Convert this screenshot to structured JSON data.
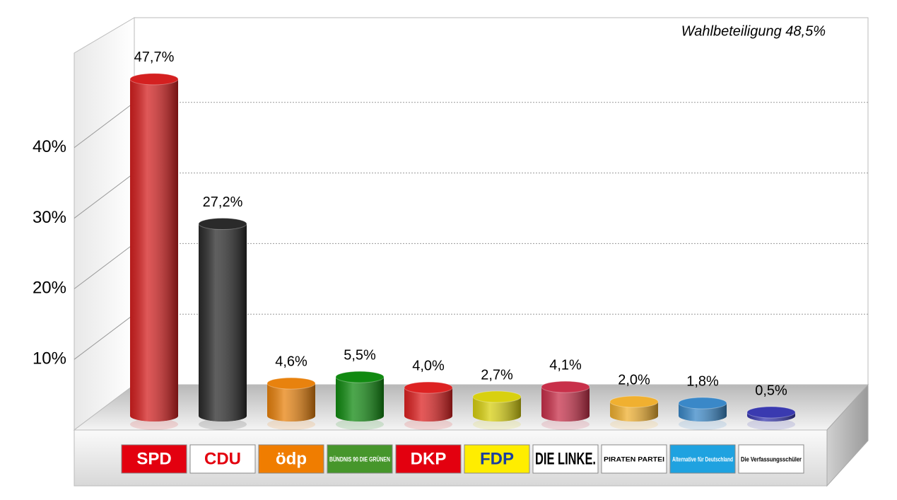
{
  "chart_data": {
    "type": "bar3d",
    "annotation": "Wahlbeteiligung 48,5%",
    "categories": [
      "SPD",
      "CDU",
      "ödp",
      "BÜNDNIS 90 DIE GRÜNEN",
      "DKP",
      "FDP",
      "DIE LINKE.",
      "PIRATEN PARTEI",
      "Alternative für Deutschland",
      "Die Verfassungsschüler"
    ],
    "values": [
      47.7,
      27.2,
      4.6,
      5.5,
      4.0,
      2.7,
      4.1,
      2.0,
      1.8,
      0.5
    ],
    "value_labels": [
      "47,7%",
      "27,2%",
      "4,6%",
      "5,5%",
      "4,0%",
      "2,7%",
      "4,1%",
      "2,0%",
      "1,8%",
      "0,5%"
    ],
    "colors": [
      "#d42020",
      "#2a2a2a",
      "#e8820e",
      "#118a11",
      "#dd2222",
      "#d8d010",
      "#c8304a",
      "#f0b030",
      "#3a88c8",
      "#3a3ab0"
    ],
    "logo_colors": [
      "#e3000f",
      "#ffffff",
      "#f07d00",
      "#46962b",
      "#e3000f",
      "#ffed00",
      "#ffffff",
      "#ffffff",
      "#1fa2e0",
      "#ffffff"
    ],
    "ylim": [
      0,
      52
    ],
    "yticks": [
      {
        "value": 10,
        "label": "10%"
      },
      {
        "value": 20,
        "label": "20%"
      },
      {
        "value": 30,
        "label": "30%"
      },
      {
        "value": 40,
        "label": "40%"
      }
    ],
    "grid": true
  }
}
